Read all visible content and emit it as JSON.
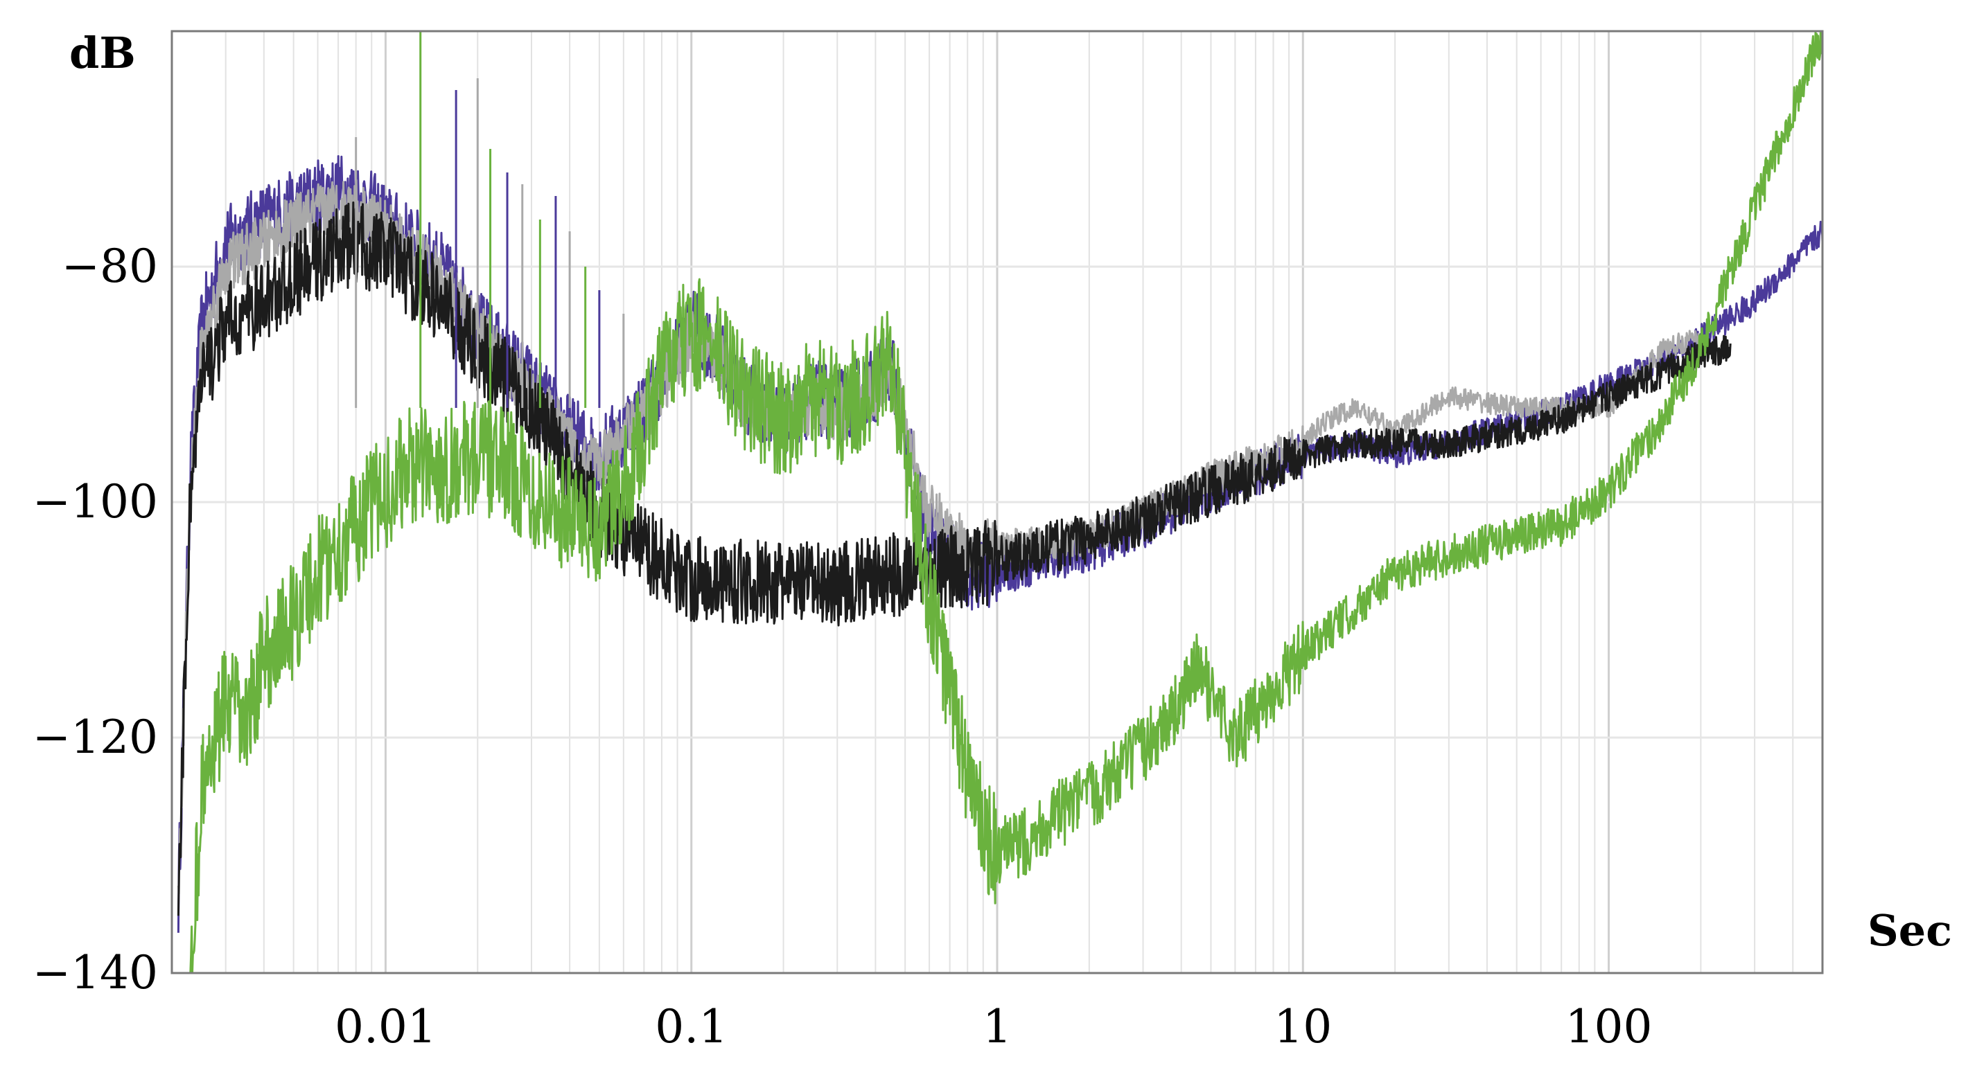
{
  "chart_data": {
    "type": "line",
    "title": "",
    "xlabel": "Sec",
    "ylabel": "dB",
    "x_scale": "log",
    "xlim": [
      0.002,
      500
    ],
    "ylim": [
      -140,
      -60
    ],
    "x_ticks": [
      0.01,
      0.1,
      1,
      10,
      100
    ],
    "x_tick_labels": [
      "0.01",
      "0.1",
      "1",
      "10",
      "100"
    ],
    "y_ticks": [
      -80,
      -100,
      -120,
      -140
    ],
    "y_tick_labels": [
      "−80",
      "−100",
      "−120",
      "−140"
    ],
    "grid": true,
    "legend": "none",
    "series": [
      {
        "color": "#4b3a9a",
        "width": 3,
        "noise": 3.2,
        "points": [
          [
            0.0021,
            -134
          ],
          [
            0.0023,
            -97
          ],
          [
            0.0025,
            -85
          ],
          [
            0.003,
            -78
          ],
          [
            0.004,
            -76
          ],
          [
            0.005,
            -75
          ],
          [
            0.006,
            -74
          ],
          [
            0.007,
            -73.5
          ],
          [
            0.008,
            -74
          ],
          [
            0.01,
            -76
          ],
          [
            0.015,
            -80
          ],
          [
            0.02,
            -85
          ],
          [
            0.03,
            -90
          ],
          [
            0.04,
            -94
          ],
          [
            0.05,
            -96
          ],
          [
            0.07,
            -92
          ],
          [
            0.1,
            -85
          ],
          [
            0.12,
            -87
          ],
          [
            0.15,
            -91
          ],
          [
            0.2,
            -93
          ],
          [
            0.25,
            -91
          ],
          [
            0.3,
            -92
          ],
          [
            0.4,
            -90
          ],
          [
            0.45,
            -88
          ],
          [
            0.5,
            -95
          ],
          [
            0.6,
            -103
          ],
          [
            0.8,
            -106
          ],
          [
            1,
            -106
          ],
          [
            2,
            -104
          ],
          [
            3,
            -102
          ],
          [
            5,
            -99
          ],
          [
            8,
            -97
          ],
          [
            10,
            -96
          ],
          [
            15,
            -95
          ],
          [
            20,
            -96
          ],
          [
            30,
            -95
          ],
          [
            50,
            -93
          ],
          [
            70,
            -92
          ],
          [
            100,
            -90
          ],
          [
            150,
            -88
          ],
          [
            200,
            -86
          ],
          [
            300,
            -83
          ],
          [
            500,
            -77
          ]
        ]
      },
      {
        "color": "#a9a9a9",
        "width": 3,
        "noise": 2.6,
        "points": [
          [
            0.0021,
            -134
          ],
          [
            0.0023,
            -98
          ],
          [
            0.0025,
            -87
          ],
          [
            0.003,
            -80
          ],
          [
            0.004,
            -78
          ],
          [
            0.005,
            -76.5
          ],
          [
            0.006,
            -75.5
          ],
          [
            0.007,
            -75
          ],
          [
            0.008,
            -75
          ],
          [
            0.01,
            -77
          ],
          [
            0.015,
            -81
          ],
          [
            0.02,
            -85.5
          ],
          [
            0.03,
            -91
          ],
          [
            0.04,
            -95
          ],
          [
            0.05,
            -97
          ],
          [
            0.07,
            -92.5
          ],
          [
            0.1,
            -86
          ],
          [
            0.12,
            -87.5
          ],
          [
            0.15,
            -91.5
          ],
          [
            0.2,
            -93.5
          ],
          [
            0.25,
            -91.5
          ],
          [
            0.3,
            -92.5
          ],
          [
            0.4,
            -90.5
          ],
          [
            0.45,
            -88.5
          ],
          [
            0.5,
            -94
          ],
          [
            0.6,
            -101
          ],
          [
            0.8,
            -104
          ],
          [
            1,
            -104
          ],
          [
            2,
            -103
          ],
          [
            3,
            -101
          ],
          [
            5,
            -98
          ],
          [
            8,
            -96
          ],
          [
            10,
            -95
          ],
          [
            12,
            -93
          ],
          [
            15,
            -92
          ],
          [
            20,
            -94
          ],
          [
            30,
            -91
          ],
          [
            50,
            -92
          ],
          [
            70,
            -92
          ],
          [
            100,
            -92
          ],
          [
            150,
            -87
          ],
          [
            200,
            -86
          ]
        ]
      },
      {
        "color": "#1c1c1c",
        "width": 3,
        "noise": 3.6,
        "points": [
          [
            0.0021,
            -134
          ],
          [
            0.0023,
            -99
          ],
          [
            0.0025,
            -90
          ],
          [
            0.003,
            -85
          ],
          [
            0.004,
            -83
          ],
          [
            0.005,
            -81
          ],
          [
            0.006,
            -79.5
          ],
          [
            0.007,
            -78.5
          ],
          [
            0.008,
            -78
          ],
          [
            0.01,
            -79
          ],
          [
            0.015,
            -83
          ],
          [
            0.02,
            -87
          ],
          [
            0.03,
            -92
          ],
          [
            0.04,
            -97
          ],
          [
            0.05,
            -101
          ],
          [
            0.07,
            -104
          ],
          [
            0.1,
            -106.5
          ],
          [
            0.2,
            -107
          ],
          [
            0.3,
            -107
          ],
          [
            0.5,
            -106
          ],
          [
            0.8,
            -105.5
          ],
          [
            1,
            -105
          ],
          [
            2,
            -103
          ],
          [
            3,
            -101.5
          ],
          [
            5,
            -99
          ],
          [
            8,
            -97
          ],
          [
            10,
            -96
          ],
          [
            15,
            -95
          ],
          [
            20,
            -95
          ],
          [
            30,
            -95
          ],
          [
            50,
            -94
          ],
          [
            70,
            -93
          ],
          [
            100,
            -91
          ],
          [
            150,
            -89
          ],
          [
            200,
            -87.5
          ],
          [
            250,
            -87
          ]
        ]
      },
      {
        "color": "#6ab23e",
        "width": 3,
        "noise": 5,
        "points": [
          [
            0.0023,
            -140
          ],
          [
            0.0025,
            -125
          ],
          [
            0.003,
            -117
          ],
          [
            0.0035,
            -119
          ],
          [
            0.004,
            -113
          ],
          [
            0.005,
            -110
          ],
          [
            0.006,
            -106
          ],
          [
            0.007,
            -104
          ],
          [
            0.008,
            -102
          ],
          [
            0.01,
            -99
          ],
          [
            0.012,
            -97
          ],
          [
            0.015,
            -97
          ],
          [
            0.02,
            -96
          ],
          [
            0.025,
            -97
          ],
          [
            0.03,
            -99
          ],
          [
            0.04,
            -101
          ],
          [
            0.05,
            -102
          ],
          [
            0.06,
            -99
          ],
          [
            0.07,
            -94
          ],
          [
            0.08,
            -89
          ],
          [
            0.1,
            -85.5
          ],
          [
            0.12,
            -87
          ],
          [
            0.15,
            -91
          ],
          [
            0.2,
            -93
          ],
          [
            0.25,
            -91
          ],
          [
            0.3,
            -92
          ],
          [
            0.4,
            -90
          ],
          [
            0.45,
            -87.5
          ],
          [
            0.5,
            -96
          ],
          [
            0.6,
            -108
          ],
          [
            0.7,
            -116
          ],
          [
            0.8,
            -123
          ],
          [
            0.9,
            -128
          ],
          [
            1,
            -130
          ],
          [
            1.2,
            -129
          ],
          [
            1.5,
            -127
          ],
          [
            2,
            -125
          ],
          [
            3,
            -121
          ],
          [
            4,
            -117
          ],
          [
            4.5,
            -114
          ],
          [
            5,
            -116
          ],
          [
            6,
            -120
          ],
          [
            7,
            -118
          ],
          [
            8,
            -116
          ],
          [
            10,
            -113
          ],
          [
            12,
            -111
          ],
          [
            15,
            -109
          ],
          [
            20,
            -106
          ],
          [
            30,
            -104.5
          ],
          [
            50,
            -103
          ],
          [
            70,
            -102
          ],
          [
            100,
            -99
          ],
          [
            150,
            -93
          ],
          [
            200,
            -87
          ],
          [
            300,
            -75
          ],
          [
            500,
            -60
          ]
        ]
      }
    ],
    "spikes": [
      [
        0.008,
        -69
      ],
      [
        0.013,
        -60
      ],
      [
        0.017,
        -65
      ],
      [
        0.02,
        -64
      ],
      [
        0.022,
        -70
      ],
      [
        0.025,
        -72
      ],
      [
        0.028,
        -73
      ],
      [
        0.032,
        -76
      ],
      [
        0.036,
        -74
      ],
      [
        0.04,
        -77
      ],
      [
        0.045,
        -80
      ],
      [
        0.05,
        -82
      ],
      [
        0.06,
        -84
      ]
    ]
  }
}
